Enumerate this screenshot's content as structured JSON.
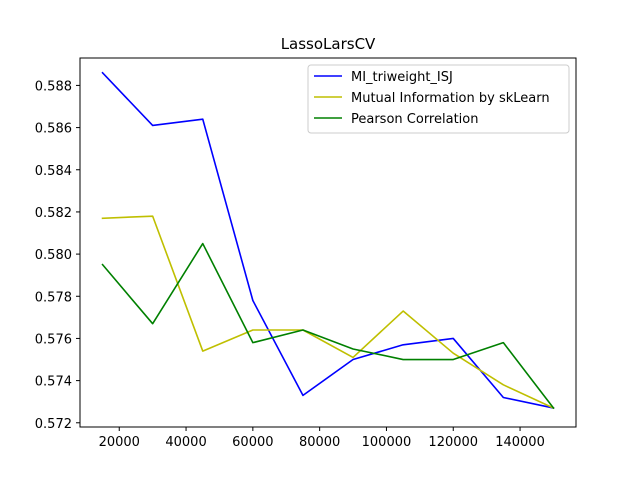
{
  "chart_data": {
    "type": "line",
    "title": "LassoLarsCV",
    "xlabel": "",
    "ylabel": "",
    "x": [
      15000,
      30000,
      45000,
      60000,
      75000,
      90000,
      105000,
      120000,
      135000,
      150000
    ],
    "xlim": [
      8250,
      156750
    ],
    "ylim": [
      0.5718,
      0.5893
    ],
    "xticks": [
      20000,
      40000,
      60000,
      80000,
      100000,
      120000,
      140000
    ],
    "xtick_labels": [
      "20000",
      "40000",
      "60000",
      "80000",
      "100000",
      "120000",
      "140000"
    ],
    "yticks": [
      0.572,
      0.574,
      0.576,
      0.578,
      0.58,
      0.582,
      0.584,
      0.586,
      0.588
    ],
    "ytick_labels": [
      "0.572",
      "0.574",
      "0.576",
      "0.578",
      "0.580",
      "0.582",
      "0.584",
      "0.586",
      "0.588"
    ],
    "grid": false,
    "legend_position": "top-right",
    "series": [
      {
        "name": "MI_triweight_ISJ",
        "color": "#0000ff",
        "values": [
          0.5886,
          0.5861,
          0.5864,
          0.5778,
          0.5733,
          0.575,
          0.5757,
          0.576,
          0.5732,
          0.5727
        ]
      },
      {
        "name": "Mutual Information by skLearn",
        "color": "#bfbf00",
        "values": [
          0.5817,
          0.5818,
          0.5754,
          0.5764,
          0.5764,
          0.5751,
          0.5773,
          0.5753,
          0.5738,
          0.5727
        ]
      },
      {
        "name": "Pearson Correlation",
        "color": "#008000",
        "values": [
          0.5795,
          0.5767,
          0.5805,
          0.5758,
          0.5764,
          0.5755,
          0.575,
          0.575,
          0.5758,
          0.5727
        ]
      }
    ]
  }
}
